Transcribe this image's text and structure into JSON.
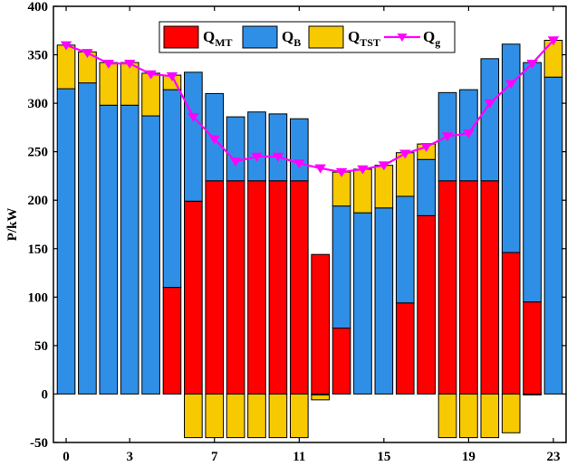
{
  "chart_data": {
    "type": "bar",
    "stacked": true,
    "title": "",
    "xlabel": "",
    "ylabel": "P/kW",
    "xlim": [
      -0.6,
      23.6
    ],
    "ylim": [
      -50,
      400
    ],
    "yticks": [
      -50,
      0,
      50,
      100,
      150,
      200,
      250,
      300,
      350,
      400
    ],
    "xticks": [
      0,
      3,
      7,
      11,
      15,
      19,
      23
    ],
    "categories": [
      0,
      1,
      2,
      3,
      4,
      5,
      6,
      7,
      8,
      9,
      10,
      11,
      12,
      13,
      14,
      15,
      16,
      17,
      18,
      19,
      20,
      21,
      22,
      23
    ],
    "series": [
      {
        "name": "Q_MT",
        "label_main": "Q",
        "label_sub": "MT",
        "color": "#ff0000",
        "values": [
          0,
          0,
          0,
          0,
          0,
          110,
          199,
          220,
          220,
          220,
          220,
          220,
          144,
          68,
          0,
          0,
          94,
          184,
          220,
          220,
          220,
          146,
          95,
          0
        ]
      },
      {
        "name": "Q_B",
        "label_main": "Q",
        "label_sub": "B",
        "color": "#2f8fe6",
        "values": [
          315,
          321,
          298,
          298,
          287,
          204,
          133,
          90,
          66,
          71,
          69,
          64,
          -1,
          126,
          187,
          192,
          110,
          58,
          91,
          94,
          126,
          215,
          247,
          327
        ]
      },
      {
        "name": "Q_TST",
        "label_main": "Q",
        "label_sub": "TST",
        "color": "#f7c900",
        "values": [
          45,
          32,
          44,
          44,
          44,
          15,
          -45,
          -45,
          -45,
          -45,
          -45,
          -45,
          -5,
          35,
          45,
          44,
          45,
          16,
          -45,
          -45,
          -45,
          -40,
          -1,
          38
        ]
      },
      {
        "name": "Q_g",
        "label_main": "Q",
        "label_sub": "g",
        "color": "#ff00ff",
        "type": "line",
        "marker": "triangle-down",
        "values": [
          360,
          352,
          341,
          341,
          330,
          328,
          286,
          263,
          240,
          245,
          245,
          238,
          233,
          229,
          232,
          236,
          248,
          255,
          266,
          269,
          300,
          320,
          341,
          365
        ]
      }
    ],
    "legend": "top-center, horizontal, boxed"
  }
}
